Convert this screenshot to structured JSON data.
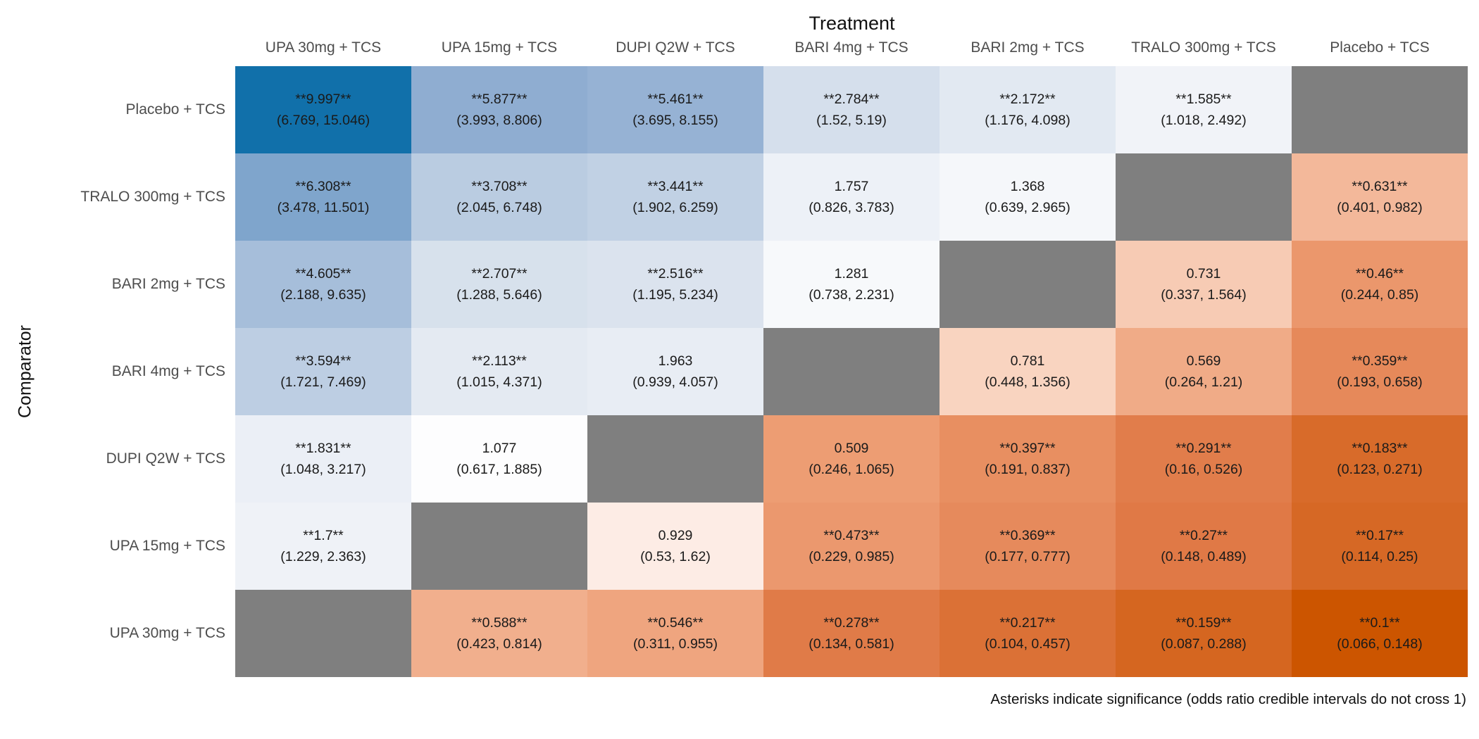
{
  "chart_data": {
    "type": "heatmap",
    "title": "Treatment",
    "xlabel": "Treatment",
    "ylabel": "Comparator",
    "caption": "Asterisks indicate significance (odds ratio credible intervals do not cross 1)",
    "columns": [
      "UPA 30mg + TCS",
      "UPA 15mg + TCS",
      "DUPI Q2W + TCS",
      "BARI 4mg + TCS",
      "BARI 2mg + TCS",
      "TRALO 300mg + TCS",
      "Placebo + TCS"
    ],
    "rows": [
      "Placebo + TCS",
      "TRALO 300mg + TCS",
      "BARI 2mg + TCS",
      "BARI 4mg + TCS",
      "DUPI Q2W + TCS",
      "UPA 15mg + TCS",
      "UPA 30mg + TCS"
    ],
    "colors": {
      "high": "#1170aa",
      "mid": "#ffffff",
      "low": "#cc5500",
      "missing": "#7f7f7f"
    },
    "scale": "log",
    "cells": [
      [
        {
          "value": 9.997,
          "label": "**9.997**",
          "ci": "(6.769, 15.046)"
        },
        {
          "value": 5.877,
          "label": "**5.877**",
          "ci": "(3.993, 8.806)"
        },
        {
          "value": 5.461,
          "label": "**5.461**",
          "ci": "(3.695, 8.155)"
        },
        {
          "value": 2.784,
          "label": "**2.784**",
          "ci": "(1.52, 5.19)"
        },
        {
          "value": 2.172,
          "label": "**2.172**",
          "ci": "(1.176, 4.098)"
        },
        {
          "value": 1.585,
          "label": "**1.585**",
          "ci": "(1.018, 2.492)"
        },
        null
      ],
      [
        {
          "value": 6.308,
          "label": "**6.308**",
          "ci": "(3.478, 11.501)"
        },
        {
          "value": 3.708,
          "label": "**3.708**",
          "ci": "(2.045, 6.748)"
        },
        {
          "value": 3.441,
          "label": "**3.441**",
          "ci": "(1.902, 6.259)"
        },
        {
          "value": 1.757,
          "label": "1.757",
          "ci": "(0.826, 3.783)"
        },
        {
          "value": 1.368,
          "label": "1.368",
          "ci": "(0.639, 2.965)"
        },
        null,
        {
          "value": 0.631,
          "label": "**0.631**",
          "ci": "(0.401, 0.982)"
        }
      ],
      [
        {
          "value": 4.605,
          "label": "**4.605**",
          "ci": "(2.188, 9.635)"
        },
        {
          "value": 2.707,
          "label": "**2.707**",
          "ci": "(1.288, 5.646)"
        },
        {
          "value": 2.516,
          "label": "**2.516**",
          "ci": "(1.195, 5.234)"
        },
        {
          "value": 1.281,
          "label": "1.281",
          "ci": "(0.738, 2.231)"
        },
        null,
        {
          "value": 0.731,
          "label": "0.731",
          "ci": "(0.337, 1.564)"
        },
        {
          "value": 0.46,
          "label": "**0.46**",
          "ci": "(0.244, 0.85)"
        }
      ],
      [
        {
          "value": 3.594,
          "label": "**3.594**",
          "ci": "(1.721, 7.469)"
        },
        {
          "value": 2.113,
          "label": "**2.113**",
          "ci": "(1.015, 4.371)"
        },
        {
          "value": 1.963,
          "label": "1.963",
          "ci": "(0.939, 4.057)"
        },
        null,
        {
          "value": 0.781,
          "label": "0.781",
          "ci": "(0.448, 1.356)"
        },
        {
          "value": 0.569,
          "label": "0.569",
          "ci": "(0.264, 1.21)"
        },
        {
          "value": 0.359,
          "label": "**0.359**",
          "ci": "(0.193, 0.658)"
        }
      ],
      [
        {
          "value": 1.831,
          "label": "**1.831**",
          "ci": "(1.048, 3.217)"
        },
        {
          "value": 1.077,
          "label": "1.077",
          "ci": "(0.617, 1.885)"
        },
        null,
        {
          "value": 0.509,
          "label": "0.509",
          "ci": "(0.246, 1.065)"
        },
        {
          "value": 0.397,
          "label": "**0.397**",
          "ci": "(0.191, 0.837)"
        },
        {
          "value": 0.291,
          "label": "**0.291**",
          "ci": "(0.16, 0.526)"
        },
        {
          "value": 0.183,
          "label": "**0.183**",
          "ci": "(0.123, 0.271)"
        }
      ],
      [
        {
          "value": 1.7,
          "label": "**1.7**",
          "ci": "(1.229, 2.363)"
        },
        null,
        {
          "value": 0.929,
          "label": "0.929",
          "ci": "(0.53, 1.62)"
        },
        {
          "value": 0.473,
          "label": "**0.473**",
          "ci": "(0.229, 0.985)"
        },
        {
          "value": 0.369,
          "label": "**0.369**",
          "ci": "(0.177, 0.777)"
        },
        {
          "value": 0.27,
          "label": "**0.27**",
          "ci": "(0.148, 0.489)"
        },
        {
          "value": 0.17,
          "label": "**0.17**",
          "ci": "(0.114, 0.25)"
        }
      ],
      [
        null,
        {
          "value": 0.588,
          "label": "**0.588**",
          "ci": "(0.423, 0.814)"
        },
        {
          "value": 0.546,
          "label": "**0.546**",
          "ci": "(0.311, 0.955)"
        },
        {
          "value": 0.278,
          "label": "**0.278**",
          "ci": "(0.134, 0.581)"
        },
        {
          "value": 0.217,
          "label": "**0.217**",
          "ci": "(0.104, 0.457)"
        },
        {
          "value": 0.159,
          "label": "**0.159**",
          "ci": "(0.087, 0.288)"
        },
        {
          "value": 0.1,
          "label": "**0.1**",
          "ci": "(0.066, 0.148)"
        }
      ]
    ]
  }
}
